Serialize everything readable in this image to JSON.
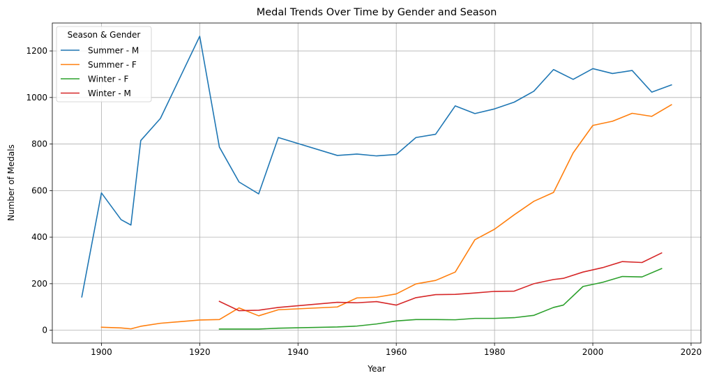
{
  "chart_data": {
    "type": "line",
    "title": "Medal Trends Over Time by Gender and Season",
    "xlabel": "Year",
    "ylabel": "Number of Medals",
    "xlim": [
      1890,
      2022
    ],
    "ylim": [
      -55,
      1320
    ],
    "xticks": [
      1900,
      1920,
      1940,
      1960,
      1980,
      2000,
      2020
    ],
    "yticks": [
      0,
      200,
      400,
      600,
      800,
      1000,
      1200
    ],
    "grid": true,
    "legend": {
      "title": "Season & Gender",
      "placement": "top-left"
    },
    "colors": {
      "summer_m": "#1f77b4",
      "summer_f": "#ff7f0e",
      "winter_f": "#2ca02c",
      "winter_m": "#d62728"
    },
    "series": [
      {
        "name": "Summer - M",
        "color": "#1f77b4",
        "x": [
          1896,
          1900,
          1904,
          1906,
          1908,
          1912,
          1920,
          1924,
          1928,
          1932,
          1936,
          1948,
          1952,
          1956,
          1960,
          1964,
          1968,
          1972,
          1976,
          1980,
          1984,
          1988,
          1992,
          1996,
          2000,
          2004,
          2008,
          2012,
          2016
        ],
        "y": [
          143,
          590,
          475,
          452,
          815,
          910,
          1263,
          787,
          637,
          586,
          828,
          751,
          757,
          749,
          755,
          828,
          842,
          964,
          931,
          951,
          980,
          1027,
          1120,
          1078,
          1124,
          1103,
          1116,
          1023,
          1054
        ]
      },
      {
        "name": "Summer - F",
        "color": "#ff7f0e",
        "x": [
          1900,
          1904,
          1906,
          1908,
          1912,
          1920,
          1924,
          1928,
          1932,
          1936,
          1948,
          1952,
          1956,
          1960,
          1964,
          1968,
          1972,
          1976,
          1980,
          1984,
          1988,
          1992,
          1996,
          2000,
          2004,
          2008,
          2012,
          2016
        ],
        "y": [
          13,
          10,
          6,
          17,
          30,
          44,
          46,
          96,
          62,
          88,
          100,
          139,
          142,
          156,
          199,
          214,
          250,
          389,
          434,
          496,
          554,
          592,
          762,
          880,
          898,
          932,
          919,
          969
        ]
      },
      {
        "name": "Winter - F",
        "color": "#2ca02c",
        "x": [
          1924,
          1928,
          1932,
          1936,
          1948,
          1952,
          1956,
          1960,
          1964,
          1968,
          1972,
          1976,
          1980,
          1984,
          1988,
          1992,
          1994,
          1998,
          2002,
          2006,
          2010,
          2014
        ],
        "y": [
          5,
          5,
          5,
          9,
          14,
          18,
          27,
          40,
          46,
          46,
          45,
          51,
          51,
          54,
          64,
          98,
          108,
          188,
          206,
          231,
          229,
          265
        ]
      },
      {
        "name": "Winter - M",
        "color": "#d62728",
        "x": [
          1924,
          1928,
          1932,
          1936,
          1948,
          1952,
          1956,
          1960,
          1964,
          1968,
          1972,
          1976,
          1980,
          1984,
          1988,
          1992,
          1994,
          1998,
          2002,
          2006,
          2010,
          2014
        ],
        "y": [
          124,
          84,
          86,
          98,
          120,
          118,
          123,
          108,
          140,
          153,
          154,
          160,
          167,
          168,
          200,
          218,
          223,
          250,
          269,
          295,
          291,
          332
        ]
      }
    ]
  }
}
